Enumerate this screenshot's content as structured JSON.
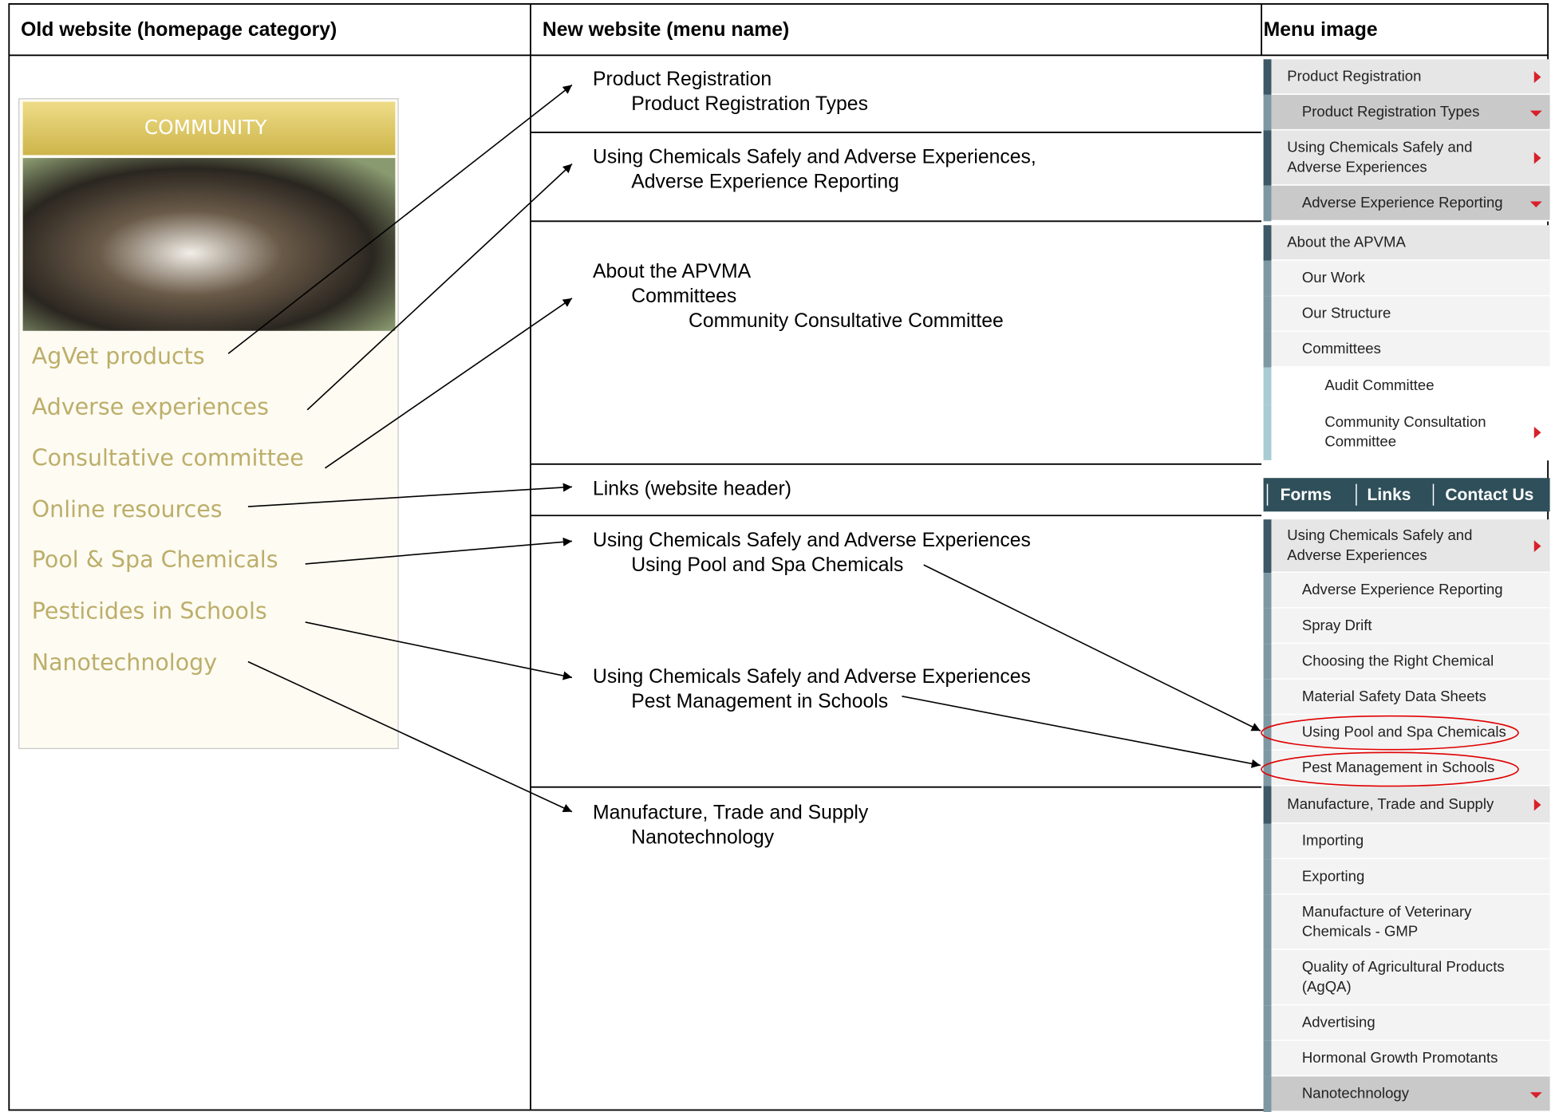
{
  "header": {
    "columns": [
      "Old website (homepage category)",
      "New website (menu name)",
      "Menu image"
    ]
  },
  "old_site": {
    "box_title": "COMMUNITY",
    "items": [
      "AgVet products",
      "Adverse experiences",
      "Consultative committee",
      "Online resources",
      "Pool & Spa Chemicals",
      "Pesticides in Schools",
      "Nanotechnology"
    ]
  },
  "new_site": {
    "entries": [
      {
        "lines": [
          "Product Registration",
          "Product Registration Types"
        ]
      },
      {
        "lines": [
          "Using Chemicals Safely and Adverse Experiences,",
          "Adverse Experience Reporting"
        ]
      },
      {
        "lines": [
          "About the APVMA",
          "Committees",
          "Community Consultative Committee"
        ]
      },
      {
        "lines": [
          "Links (website header)"
        ]
      },
      {
        "lines": [
          "Using Chemicals Safely and Adverse Experiences",
          "Using Pool and Spa Chemicals"
        ]
      },
      {
        "lines": [
          "Using Chemicals Safely and Adverse Experiences",
          "Pest Management in Schools"
        ]
      },
      {
        "lines": [
          "Manufacture, Trade and Supply",
          "Nanotechnology"
        ]
      }
    ]
  },
  "menu_image": {
    "items": [
      {
        "lines": [
          "Product Registration"
        ]
      },
      {
        "lines": [
          "Product Registration Types"
        ]
      },
      {
        "lines": [
          "Using Chemicals Safely and",
          "Adverse Experiences"
        ]
      },
      {
        "lines": [
          "Adverse Experience Reporting"
        ]
      },
      {
        "lines": [
          "About the APVMA"
        ]
      },
      {
        "lines": [
          "Our Work"
        ]
      },
      {
        "lines": [
          "Our Structure"
        ]
      },
      {
        "lines": [
          "Committees"
        ]
      },
      {
        "lines": [
          "Audit Committee"
        ]
      },
      {
        "lines": [
          "Community Consultation",
          "Committee"
        ]
      },
      {
        "lines": [
          "Using Chemicals Safely and",
          "Adverse Experiences"
        ]
      },
      {
        "lines": [
          "Adverse Experience Reporting"
        ]
      },
      {
        "lines": [
          "Spray Drift"
        ]
      },
      {
        "lines": [
          "Choosing the Right Chemical"
        ]
      },
      {
        "lines": [
          "Material Safety Data Sheets"
        ]
      },
      {
        "lines": [
          "Using Pool and Spa Chemicals"
        ]
      },
      {
        "lines": [
          "Pest Management in Schools"
        ]
      },
      {
        "lines": [
          "Manufacture, Trade and Supply"
        ]
      },
      {
        "lines": [
          "Importing"
        ]
      },
      {
        "lines": [
          "Exporting"
        ]
      },
      {
        "lines": [
          "Manufacture of Veterinary",
          "Chemicals - GMP"
        ]
      },
      {
        "lines": [
          "Quality of Agricultural Products",
          "(AgQA)"
        ]
      },
      {
        "lines": [
          "Advertising"
        ]
      },
      {
        "lines": [
          "Hormonal Growth Promotants"
        ]
      },
      {
        "lines": [
          "Nanotechnology"
        ]
      }
    ],
    "header_links": [
      "Forms",
      "Links",
      "Contact Us"
    ]
  }
}
